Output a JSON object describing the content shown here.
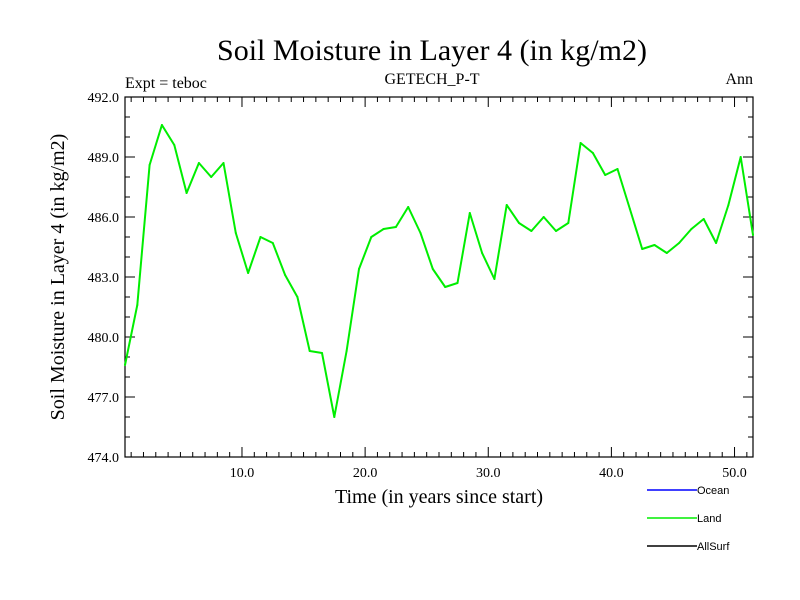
{
  "chart_data": {
    "type": "line",
    "title": "Soil Moisture in Layer 4 (in kg/m2)",
    "subtitle_left": "Expt = teboc",
    "subtitle_center": "GETECH_P-T",
    "subtitle_right": "Ann",
    "xlabel": "Time (in years since start)",
    "ylabel": "Soil Moisture in Layer 4 (in kg/m2)",
    "xlim": [
      0.5,
      51.5
    ],
    "ylim": [
      474.0,
      492.0
    ],
    "x_ticks": [
      10,
      20,
      30,
      40,
      50
    ],
    "x_tick_labels": [
      "10.0",
      "20.0",
      "30.0",
      "40.0",
      "50.0"
    ],
    "y_ticks": [
      474,
      477,
      480,
      483,
      486,
      489,
      492
    ],
    "y_tick_labels": [
      "474.0",
      "477.0",
      "480.0",
      "483.0",
      "486.0",
      "489.0",
      "492.0"
    ],
    "legend": [
      {
        "name": "Ocean",
        "color": "#0000ff"
      },
      {
        "name": "Land",
        "color": "#00ee00"
      },
      {
        "name": "AllSurf",
        "color": "#000000"
      }
    ],
    "series": [
      {
        "name": "Land",
        "color": "#00ee00",
        "x": [
          0.5,
          1.5,
          2.5,
          3.5,
          4.5,
          5.5,
          6.5,
          7.5,
          8.5,
          9.5,
          10.5,
          11.5,
          12.5,
          13.5,
          14.5,
          15.5,
          16.5,
          17.5,
          18.5,
          19.5,
          20.5,
          21.5,
          22.5,
          23.5,
          24.5,
          25.5,
          26.5,
          27.5,
          28.5,
          29.5,
          30.5,
          31.5,
          32.5,
          33.5,
          34.5,
          35.5,
          36.5,
          37.5,
          38.5,
          39.5,
          40.5,
          41.5,
          42.5,
          43.5,
          44.5,
          45.5,
          46.5,
          47.5,
          48.5,
          49.5,
          50.5,
          51.5
        ],
        "values": [
          478.6,
          481.6,
          488.6,
          490.6,
          489.6,
          487.2,
          488.7,
          488.0,
          488.7,
          485.2,
          483.2,
          485.0,
          484.7,
          483.1,
          482.0,
          479.3,
          479.2,
          476.0,
          479.3,
          483.4,
          485.0,
          485.4,
          485.5,
          486.5,
          485.2,
          483.4,
          482.5,
          482.7,
          486.2,
          484.2,
          482.9,
          486.6,
          485.7,
          485.3,
          486.0,
          485.3,
          485.7,
          489.7,
          489.2,
          488.1,
          488.4,
          486.4,
          484.4,
          484.6,
          484.2,
          484.7,
          485.4,
          485.9,
          484.7,
          486.6,
          489.0,
          485.1
        ]
      }
    ]
  }
}
